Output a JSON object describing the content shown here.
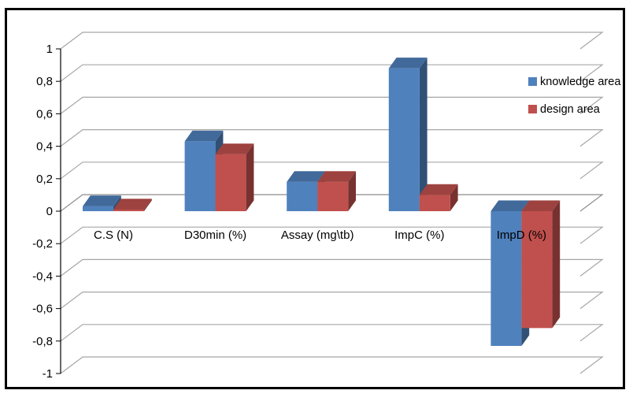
{
  "chart_data": {
    "type": "bar",
    "title": "",
    "xlabel": "",
    "ylabel": "",
    "categories": [
      "C.S (N)",
      "D30min (%)",
      "Assay (mg\\tb)",
      "ImpC (%)",
      "ImpD (%)"
    ],
    "series": [
      {
        "name": "knowledge area",
        "color": "#4F81BD",
        "values": [
          0.03,
          0.43,
          0.18,
          0.88,
          -0.83
        ]
      },
      {
        "name": "design area",
        "color": "#C0504D",
        "values": [
          0.01,
          0.35,
          0.18,
          0.1,
          -0.72
        ]
      }
    ],
    "ylim": [
      -1,
      1
    ],
    "yticks": [
      1,
      0.8,
      0.6,
      0.4,
      0.2,
      0,
      -0.2,
      -0.4,
      -0.6,
      -0.8,
      -1
    ],
    "ytick_labels": [
      "1",
      "0,8",
      "0,6",
      "0,4",
      "0,2",
      "0",
      "-0,2",
      "-0,4",
      "-0,6",
      "-0,8",
      "-1"
    ],
    "grid": true,
    "legend_position": "right"
  }
}
